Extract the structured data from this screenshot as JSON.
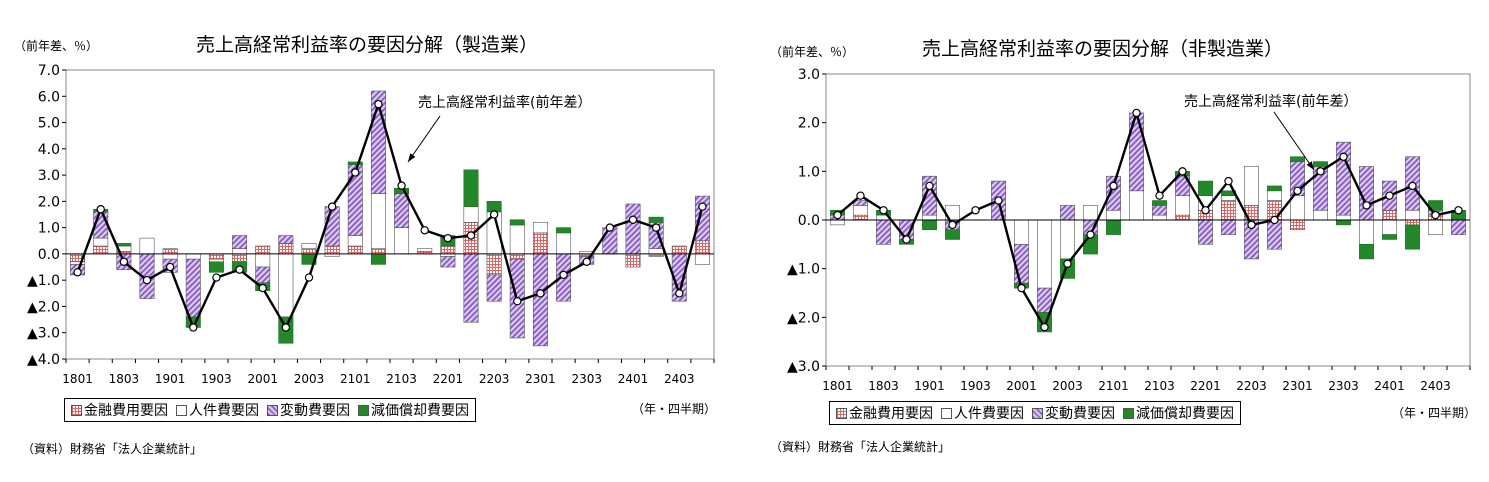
{
  "chart_data": [
    {
      "type": "bar",
      "title": "売上高経常利益率の要因分解（製造業）",
      "unit_label": "（前年差、％）",
      "period_label": "（年・四半期）",
      "source": "（資料）財務省「法人企業統計」",
      "annotation": "売上高経常利益率(前年差）",
      "ylim": [
        -4.0,
        7.0
      ],
      "y_ticks": [
        {
          "value": 7.0,
          "label": "7.0"
        },
        {
          "value": 6.0,
          "label": "6.0"
        },
        {
          "value": 5.0,
          "label": "5.0"
        },
        {
          "value": 4.0,
          "label": "4.0"
        },
        {
          "value": 3.0,
          "label": "3.0"
        },
        {
          "value": 2.0,
          "label": "2.0"
        },
        {
          "value": 1.0,
          "label": "1.0"
        },
        {
          "value": 0.0,
          "label": "0.0"
        },
        {
          "value": -1.0,
          "label": "▲1.0"
        },
        {
          "value": -2.0,
          "label": "▲2.0"
        },
        {
          "value": -3.0,
          "label": "▲3.0"
        },
        {
          "value": -4.0,
          "label": "▲4.0"
        }
      ],
      "x_tick_labels": [
        "1801",
        "1803",
        "1901",
        "1903",
        "2001",
        "2003",
        "2101",
        "2103",
        "2201",
        "2203",
        "2301",
        "2303",
        "2401",
        "2403"
      ],
      "n_periods": 28,
      "stacked": true,
      "legend_placement": "bottom",
      "series": [
        {
          "name": "金融費用要因",
          "color": "#e06666",
          "pattern": "grid",
          "values": [
            -0.3,
            0.3,
            0.1,
            0.0,
            0.2,
            0.0,
            -0.2,
            -0.3,
            0.3,
            0.4,
            0.2,
            0.3,
            0.3,
            0.2,
            0.0,
            0.1,
            0.3,
            1.2,
            -0.8,
            -0.2,
            0.8,
            0.0,
            -0.1,
            0.0,
            -0.5,
            -0.1,
            0.3,
            0.5
          ]
        },
        {
          "name": "人件費要因",
          "color": "#ffffff",
          "pattern": "none",
          "values": [
            -0.1,
            0.3,
            0.2,
            0.6,
            -0.2,
            -0.2,
            -0.1,
            0.2,
            -0.5,
            -2.4,
            0.2,
            -0.1,
            0.4,
            2.1,
            1.0,
            0.1,
            -0.1,
            0.6,
            1.6,
            1.1,
            0.4,
            0.8,
            0.1,
            0.0,
            0.0,
            0.2,
            0.0,
            -0.4
          ]
        },
        {
          "name": "変動費要因",
          "color": "#9966cc",
          "pattern": "hatch",
          "values": [
            -0.4,
            1.0,
            -0.6,
            -1.7,
            -0.5,
            -2.2,
            0.0,
            0.5,
            -0.6,
            0.3,
            0.0,
            1.5,
            2.7,
            3.9,
            1.3,
            0.0,
            -0.4,
            -2.6,
            -1.0,
            -3.0,
            -3.5,
            -1.8,
            -0.3,
            1.0,
            1.9,
            1.0,
            -1.8,
            1.7
          ]
        },
        {
          "name": "減価償却費要因",
          "color": "#22882a",
          "pattern": "solid",
          "values": [
            0.0,
            0.1,
            0.1,
            0.0,
            0.0,
            -0.4,
            -0.4,
            -0.4,
            -0.3,
            -1.0,
            -0.4,
            0.0,
            0.1,
            -0.4,
            0.2,
            0.0,
            0.4,
            1.4,
            0.4,
            0.2,
            0.0,
            0.2,
            0.0,
            0.0,
            0.0,
            0.2,
            0.0,
            0.0
          ]
        }
      ],
      "line": {
        "name": "売上高経常利益率(前年差）",
        "values": [
          -0.7,
          1.7,
          -0.3,
          -1.0,
          -0.5,
          -2.8,
          -0.9,
          -0.6,
          -1.3,
          -2.8,
          -0.9,
          1.8,
          3.1,
          5.7,
          2.6,
          0.9,
          0.6,
          0.7,
          1.5,
          -1.8,
          -1.5,
          -0.8,
          -0.3,
          1.0,
          1.3,
          1.0,
          -1.5,
          1.8
        ]
      }
    },
    {
      "type": "bar",
      "title": "売上高経常利益率の要因分解（非製造業）",
      "unit_label": "（前年差、％）",
      "period_label": "（年・四半期）",
      "source": "（資料）財務省「法人企業統計」",
      "annotation": "売上高経常利益率(前年差）",
      "ylim": [
        -3.0,
        3.0
      ],
      "y_ticks": [
        {
          "value": 3.0,
          "label": "3.0"
        },
        {
          "value": 2.0,
          "label": "2.0"
        },
        {
          "value": 1.0,
          "label": "1.0"
        },
        {
          "value": 0.0,
          "label": "0.0"
        },
        {
          "value": -1.0,
          "label": "▲1.0"
        },
        {
          "value": -2.0,
          "label": "▲2.0"
        },
        {
          "value": -3.0,
          "label": "▲3.0"
        }
      ],
      "x_tick_labels": [
        "1801",
        "1803",
        "1901",
        "1903",
        "2001",
        "2003",
        "2101",
        "2103",
        "2201",
        "2203",
        "2301",
        "2303",
        "2401",
        "2403"
      ],
      "n_periods": 28,
      "stacked": true,
      "legend_placement": "bottom",
      "series": [
        {
          "name": "金融費用要因",
          "color": "#e06666",
          "pattern": "grid",
          "values": [
            0.0,
            0.1,
            0.0,
            0.0,
            0.0,
            0.0,
            0.0,
            0.0,
            0.0,
            0.0,
            0.0,
            0.0,
            0.0,
            0.0,
            0.0,
            0.1,
            0.2,
            0.4,
            0.3,
            0.4,
            -0.2,
            0.0,
            0.0,
            0.0,
            0.2,
            -0.1,
            0.1,
            0.0
          ]
        },
        {
          "name": "人件費要因",
          "color": "#ffffff",
          "pattern": "none",
          "values": [
            -0.1,
            0.2,
            0.1,
            0.0,
            0.1,
            0.3,
            0.0,
            0.0,
            -0.5,
            -1.4,
            -0.8,
            0.3,
            0.2,
            0.6,
            0.1,
            0.4,
            0.3,
            0.1,
            0.8,
            0.2,
            0.5,
            0.2,
            0.1,
            -0.5,
            -0.3,
            0.2,
            -0.3,
            0.0
          ]
        },
        {
          "name": "変動費要因",
          "color": "#9966cc",
          "pattern": "hatch",
          "values": [
            0.1,
            0.1,
            -0.5,
            -0.4,
            0.8,
            -0.2,
            0.0,
            0.8,
            -0.8,
            -0.5,
            0.3,
            -0.3,
            0.7,
            1.6,
            0.2,
            0.4,
            -0.5,
            -0.3,
            -0.8,
            -0.6,
            0.7,
            0.9,
            1.5,
            1.1,
            0.6,
            1.1,
            0.1,
            -0.3
          ]
        },
        {
          "name": "減価償却費要因",
          "color": "#22882a",
          "pattern": "solid",
          "values": [
            0.1,
            0.0,
            0.1,
            -0.1,
            -0.2,
            -0.2,
            0.0,
            0.0,
            -0.1,
            -0.4,
            -0.4,
            -0.4,
            -0.3,
            0.0,
            0.1,
            0.1,
            0.3,
            0.1,
            0.0,
            0.1,
            0.1,
            0.1,
            -0.1,
            -0.3,
            -0.1,
            -0.5,
            0.2,
            0.2
          ]
        }
      ],
      "line": {
        "name": "売上高経常利益率(前年差）",
        "values": [
          0.1,
          0.5,
          0.2,
          -0.4,
          0.7,
          -0.1,
          0.2,
          0.4,
          -1.4,
          -2.2,
          -0.9,
          -0.3,
          0.7,
          2.2,
          0.5,
          1.0,
          0.2,
          0.8,
          -0.1,
          0.0,
          0.6,
          1.0,
          1.3,
          0.3,
          0.5,
          0.7,
          0.1,
          0.2
        ]
      }
    }
  ]
}
